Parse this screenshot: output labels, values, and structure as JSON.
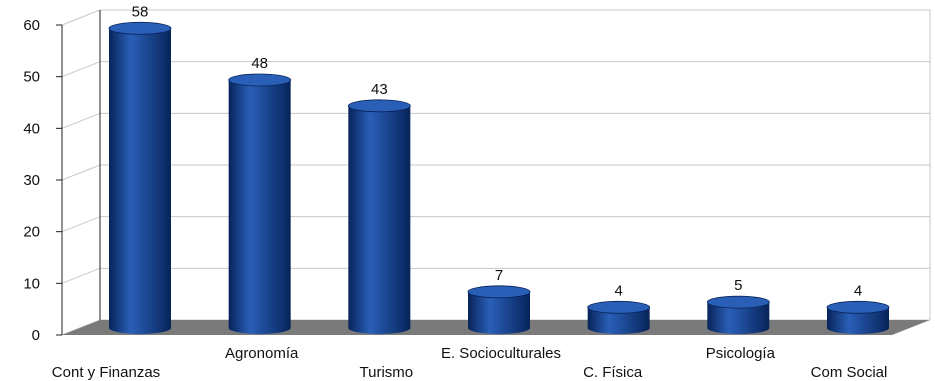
{
  "chart_data": {
    "type": "bar",
    "categories": [
      "Cont y Finanzas",
      "Agronomía",
      "Turismo",
      "E. Socioculturales",
      "C. Física",
      "Psicología",
      "Com Social"
    ],
    "values": [
      58,
      48,
      43,
      7,
      4,
      5,
      4
    ],
    "data_labels": [
      "58",
      "48",
      "43",
      "7",
      "4",
      "5",
      "4"
    ],
    "title": "",
    "xlabel": "",
    "ylabel": "",
    "ylim": [
      0,
      60
    ],
    "yticks": [
      "0",
      "10",
      "20",
      "30",
      "40",
      "50",
      "60"
    ],
    "grid": true,
    "legend": "none",
    "bar_style": "3d-cylinder",
    "colors": {
      "bar_main": "#0d3a86",
      "bar_light": "#2a5fb8",
      "bar_dark": "#07245a",
      "floor": "#7a7a7a",
      "grid": "#c8c8c8",
      "axis": "#222222"
    }
  }
}
